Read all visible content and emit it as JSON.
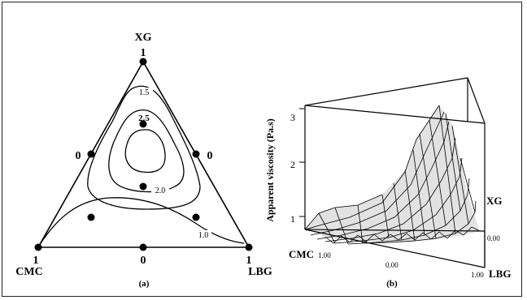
{
  "panel_a": {
    "vertex_top": "XG",
    "vertex_left": "CMC",
    "vertex_right": "LBG",
    "tick_top": "1",
    "tick_left": "1",
    "tick_right": "1",
    "edge_left_mid": "0",
    "edge_right_mid": "0",
    "edge_bottom_mid": "0",
    "contour_1_5": "1.5",
    "contour_2_5": "2.5",
    "contour_2_0": "2.0",
    "contour_1_0": "1.0",
    "caption": "(a)"
  },
  "panel_b": {
    "z_axis_label": "Apparent viscosity (Pa.s)",
    "z_ticks": [
      "1",
      "2",
      "3"
    ],
    "axis_xg": "XG",
    "axis_cmc": "CMC",
    "axis_lbg": "LBG",
    "tick_cmc_max": "1.00",
    "tick_center": "0.00",
    "tick_lbg_max": "1.00",
    "tick_xg_min": "0.00",
    "caption": "(b)"
  }
}
